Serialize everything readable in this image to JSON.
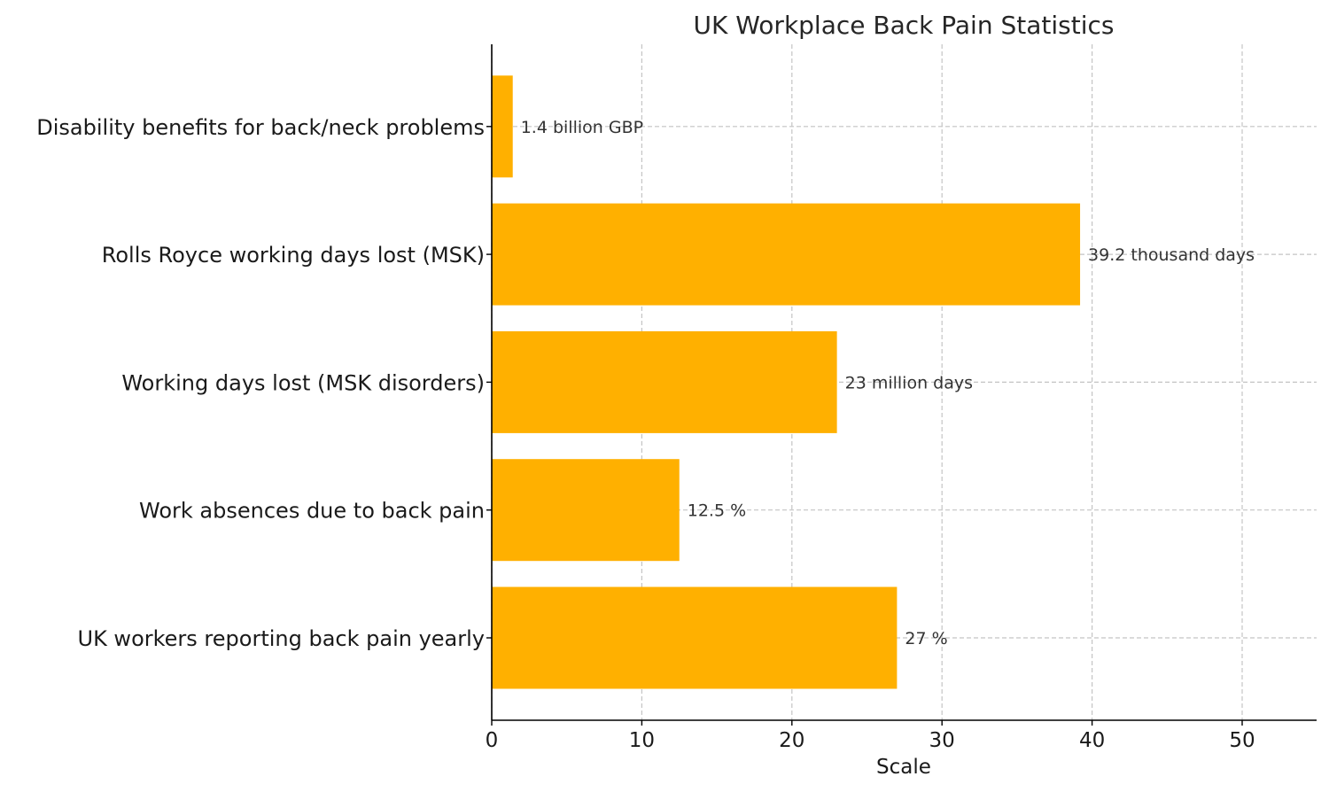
{
  "chart_data": {
    "type": "bar",
    "orientation": "horizontal",
    "title": "UK Workplace Back Pain Statistics",
    "xlabel": "Scale",
    "ylabel": "",
    "xlim": [
      0,
      55
    ],
    "xticks": [
      0,
      10,
      20,
      30,
      40,
      50
    ],
    "grid": true,
    "bar_color": "#FFB000",
    "categories": [
      "UK workers reporting back pain yearly",
      "Work absences due to back pain",
      "Working days lost (MSK disorders)",
      "Rolls Royce working days lost (MSK)",
      "Disability benefits for back/neck problems"
    ],
    "values": [
      27,
      12.5,
      23,
      39.2,
      1.4
    ],
    "data_labels": [
      "27 %",
      "12.5 %",
      "23 million days",
      "39.2 thousand days",
      "1.4 billion GBP"
    ]
  }
}
